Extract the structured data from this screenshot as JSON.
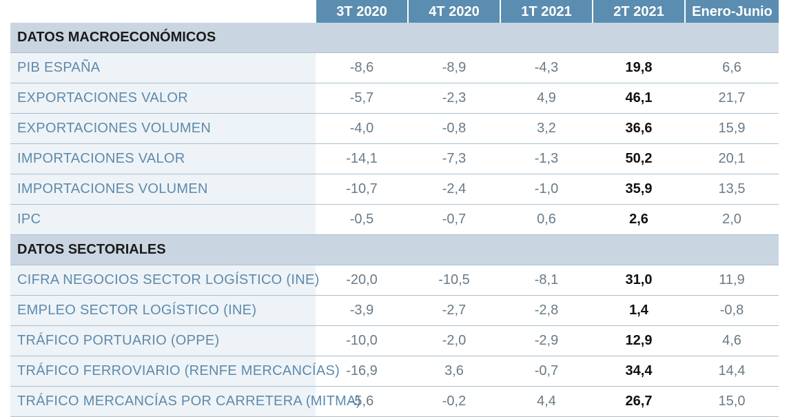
{
  "header": {
    "columns": [
      "3T 2020",
      "4T 2020",
      "1T 2021",
      "2T 2021",
      "Enero-Junio"
    ]
  },
  "sections": [
    {
      "title": "DATOS MACROECONÓMICOS",
      "rows": [
        {
          "label": "PIB ESPAÑA",
          "values": [
            "-8,6",
            "-8,9",
            "-4,3",
            "19,8",
            "6,6"
          ]
        },
        {
          "label": "EXPORTACIONES VALOR",
          "values": [
            "-5,7",
            "-2,3",
            "4,9",
            "46,1",
            "21,7"
          ]
        },
        {
          "label": "EXPORTACIONES VOLUMEN",
          "values": [
            "-4,0",
            "-0,8",
            "3,2",
            "36,6",
            "15,9"
          ]
        },
        {
          "label": "IMPORTACIONES VALOR",
          "values": [
            "-14,1",
            "-7,3",
            "-1,3",
            "50,2",
            "20,1"
          ]
        },
        {
          "label": "IMPORTACIONES VOLUMEN",
          "values": [
            "-10,7",
            "-2,4",
            "-1,0",
            "35,9",
            "13,5"
          ]
        },
        {
          "label": "IPC",
          "values": [
            "-0,5",
            "-0,7",
            "0,6",
            "2,6",
            "2,0"
          ]
        }
      ]
    },
    {
      "title": "DATOS SECTORIALES",
      "rows": [
        {
          "label": "CIFRA NEGOCIOS SECTOR LOGÍSTICO (INE)",
          "values": [
            "-20,0",
            "-10,5",
            "-8,1",
            "31,0",
            "11,9"
          ]
        },
        {
          "label": "EMPLEO SECTOR LOGÍSTICO (INE)",
          "values": [
            "-3,9",
            "-2,7",
            "-2,8",
            "1,4",
            "-0,8"
          ]
        },
        {
          "label": "TRÁFICO PORTUARIO (OPPE)",
          "values": [
            "-10,0",
            "-2,0",
            "-2,9",
            "12,9",
            "4,6"
          ]
        },
        {
          "label": "TRÁFICO FERROVIARIO (RENFE MERCANCÍAS)",
          "values": [
            "-16,9",
            "3,6",
            "-0,7",
            "34,4",
            "14,4"
          ]
        },
        {
          "label": "TRÁFICO MERCANCÍAS POR CARRETERA (MITMA)",
          "values": [
            "-5,6",
            "-0,2",
            "4,4",
            "26,7",
            "15,0"
          ]
        }
      ]
    }
  ],
  "colors": {
    "header_bg": "#5a8db0",
    "section_bg": "#c9d6e2",
    "label_text": "#5d8aac",
    "value_text": "#6a7a85",
    "highlight_text": "#111111"
  }
}
